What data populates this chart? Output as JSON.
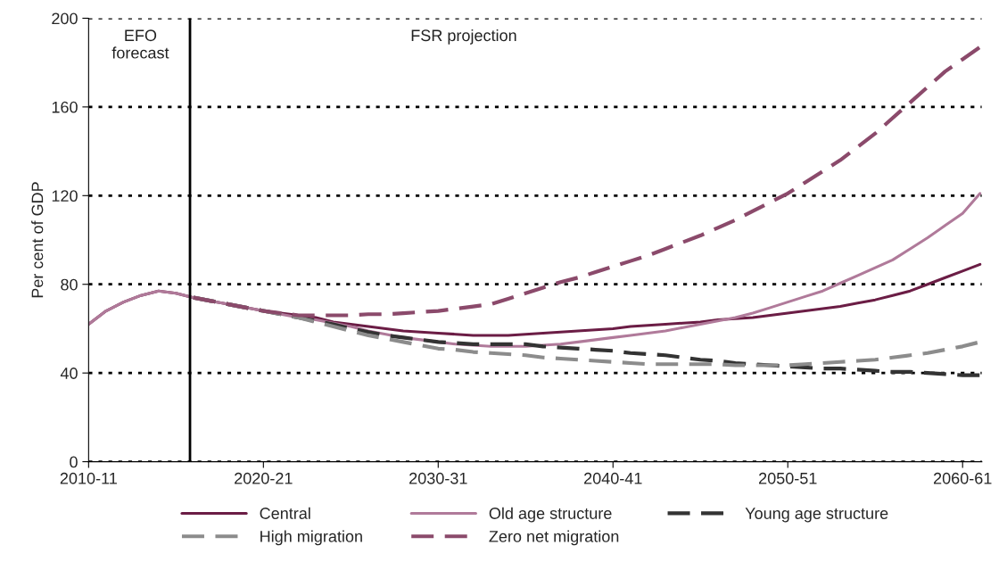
{
  "chart_data": {
    "type": "line",
    "ylabel": "Per cent of GDP",
    "categories": [
      "2010-11",
      null,
      null,
      null,
      null,
      null,
      null,
      null,
      null,
      null,
      "2020-21",
      null,
      null,
      null,
      null,
      null,
      null,
      null,
      null,
      null,
      "2030-31",
      null,
      null,
      null,
      null,
      null,
      null,
      null,
      null,
      null,
      "2040-41",
      null,
      null,
      null,
      null,
      null,
      null,
      null,
      null,
      null,
      "2050-51",
      null,
      null,
      null,
      null,
      null,
      null,
      null,
      null,
      null,
      "2060-61",
      null
    ],
    "ylim": [
      0,
      200
    ],
    "yticks": [
      0,
      40,
      80,
      120,
      160,
      200
    ],
    "grid": "y",
    "legend": "bottom",
    "annotations": [
      "EFO\nforecast",
      "FSR projection"
    ],
    "series": [
      {
        "name": "Central",
        "color": "#6b1d45",
        "line_style": "solid",
        "values": [
          62,
          68,
          72,
          75,
          77,
          76,
          74,
          72.5,
          71,
          69.5,
          68,
          67,
          66,
          65,
          63,
          62,
          61,
          60,
          59,
          58.5,
          58,
          57.5,
          57,
          57,
          57,
          57.5,
          58,
          58.5,
          59,
          59.5,
          60,
          61,
          61.5,
          62,
          62.5,
          63,
          64,
          64.5,
          65,
          66,
          67,
          68,
          69,
          70,
          71.5,
          73,
          75,
          77,
          80,
          83,
          86,
          89
        ]
      },
      {
        "name": "Old age structure",
        "color": "#b07a9a",
        "line_style": "solid",
        "values": [
          62,
          68,
          72,
          75,
          77,
          76,
          74,
          72.5,
          71,
          69.5,
          68,
          66.5,
          65,
          64,
          62.5,
          61,
          59,
          57.5,
          56,
          55,
          54,
          53,
          52.5,
          52,
          52,
          52,
          52.5,
          53,
          54,
          55,
          56,
          57,
          58,
          59,
          60.5,
          62,
          63.5,
          65,
          67,
          69.5,
          72,
          74.5,
          77,
          80.5,
          84,
          87.5,
          91,
          96,
          101,
          106.5,
          112,
          121
        ]
      },
      {
        "name": "Young age structure",
        "color": "#333333",
        "line_style": "dashed",
        "values": [
          null,
          null,
          null,
          null,
          null,
          null,
          74,
          72.5,
          71,
          69.5,
          68,
          66.5,
          65,
          63.5,
          62,
          60,
          58.5,
          57,
          56,
          55,
          54,
          53.5,
          53,
          53,
          53,
          53,
          52,
          51.5,
          51,
          50.5,
          50,
          49,
          48.5,
          48,
          47,
          46,
          45.5,
          44.5,
          44,
          43.5,
          43,
          42.5,
          42,
          42,
          41.5,
          41,
          40.5,
          40.5,
          40,
          39.5,
          39,
          39
        ]
      },
      {
        "name": "High migration",
        "color": "#8c8c8c",
        "line_style": "dashed",
        "values": [
          null,
          null,
          null,
          null,
          null,
          null,
          74,
          72.5,
          71,
          69.5,
          68,
          66.5,
          65,
          63,
          61,
          59,
          57,
          55.5,
          54,
          52.5,
          51,
          50.5,
          49.5,
          49,
          48.5,
          48,
          47,
          46.5,
          46,
          45.5,
          45,
          44.5,
          44,
          44,
          44,
          44,
          44,
          43.5,
          43.5,
          43.5,
          43.5,
          44,
          44.5,
          45,
          45.5,
          46,
          47,
          48,
          49,
          50.5,
          52,
          54
        ]
      },
      {
        "name": "Zero net migration",
        "color": "#8b4a6b",
        "line_style": "dashed",
        "values": [
          null,
          null,
          null,
          null,
          null,
          null,
          74,
          72.5,
          71,
          69.5,
          68,
          67,
          66,
          66,
          66,
          66,
          66.5,
          66.5,
          67,
          67.5,
          68,
          69,
          70,
          71,
          73.5,
          76,
          78.5,
          81,
          83,
          85.5,
          88,
          90.5,
          93,
          96,
          99,
          102,
          105.5,
          109,
          113,
          117,
          121,
          126,
          131,
          136,
          142,
          148,
          155,
          162,
          169,
          176,
          181.5,
          187
        ]
      }
    ]
  }
}
